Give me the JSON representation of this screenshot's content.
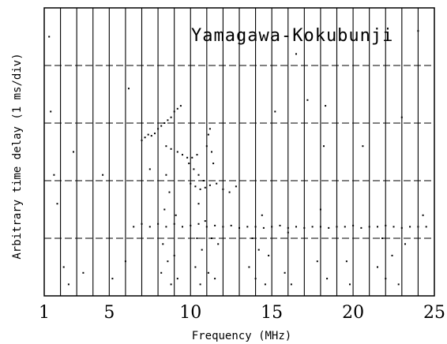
{
  "chart_data": {
    "type": "scatter",
    "title": "Yamagawa-Kokubunji",
    "xlabel": "Frequency (MHz)",
    "ylabel": "Arbitrary time delay (1 ms/div)",
    "xlim": [
      1,
      25
    ],
    "ylim": [
      0,
      5
    ],
    "x_ticks": [
      1,
      5,
      10,
      15,
      20,
      25
    ],
    "x_tick_labels": [
      "1",
      "5",
      "10",
      "15",
      "20",
      "25"
    ],
    "vertical_grid_lines_per_MHz": 1,
    "horizontal_gridlines_ms": [
      1,
      2,
      3,
      4
    ],
    "grid": true,
    "series": [
      {
        "values": [
          [
            7.0,
            2.7
          ],
          [
            7.2,
            2.75
          ],
          [
            7.4,
            2.8
          ],
          [
            7.6,
            2.78
          ],
          [
            7.8,
            2.82
          ],
          [
            8.0,
            2.9
          ],
          [
            8.2,
            2.95
          ],
          [
            8.4,
            3.0
          ],
          [
            8.6,
            3.05
          ],
          [
            8.8,
            3.1
          ],
          [
            9.0,
            3.2
          ],
          [
            9.2,
            3.25
          ],
          [
            9.4,
            3.3
          ],
          [
            8.5,
            2.6
          ],
          [
            8.8,
            2.55
          ],
          [
            9.2,
            2.5
          ],
          [
            9.5,
            2.45
          ],
          [
            9.8,
            2.4
          ],
          [
            10.1,
            2.4
          ],
          [
            10.4,
            2.45
          ],
          [
            10.0,
            1.95
          ],
          [
            10.3,
            1.9
          ],
          [
            10.6,
            1.85
          ],
          [
            10.9,
            1.88
          ],
          [
            11.2,
            1.92
          ],
          [
            11.6,
            1.95
          ],
          [
            12.0,
            1.85
          ],
          [
            12.4,
            1.8
          ],
          [
            12.8,
            1.9
          ],
          [
            9.9,
            2.3
          ],
          [
            10.2,
            2.2
          ],
          [
            10.5,
            2.1
          ],
          [
            10.8,
            2.0
          ],
          [
            11.0,
            2.6
          ],
          [
            11.1,
            2.8
          ],
          [
            11.2,
            2.9
          ],
          [
            11.3,
            2.5
          ],
          [
            11.4,
            2.3
          ],
          [
            6.5,
            1.2
          ],
          [
            7.0,
            1.25
          ],
          [
            7.5,
            1.2
          ],
          [
            8.0,
            1.25
          ],
          [
            8.5,
            1.2
          ],
          [
            9.0,
            1.25
          ],
          [
            9.5,
            1.2
          ],
          [
            10.0,
            1.22
          ],
          [
            10.5,
            1.25
          ],
          [
            11.0,
            1.2
          ],
          [
            11.5,
            1.22
          ],
          [
            12.0,
            1.2
          ],
          [
            12.5,
            1.22
          ],
          [
            13.0,
            1.18
          ],
          [
            13.5,
            1.2
          ],
          [
            14.0,
            1.2
          ],
          [
            14.5,
            1.18
          ],
          [
            15.0,
            1.2
          ],
          [
            15.5,
            1.22
          ],
          [
            16.0,
            1.18
          ],
          [
            16.5,
            1.2
          ],
          [
            17.0,
            1.18
          ],
          [
            17.5,
            1.2
          ],
          [
            18.0,
            1.2
          ],
          [
            18.5,
            1.18
          ],
          [
            19.0,
            1.2
          ],
          [
            19.5,
            1.2
          ],
          [
            20.0,
            1.22
          ],
          [
            20.5,
            1.18
          ],
          [
            21.0,
            1.2
          ],
          [
            21.5,
            1.2
          ],
          [
            22.0,
            1.22
          ],
          [
            22.5,
            1.2
          ],
          [
            23.0,
            1.18
          ],
          [
            23.5,
            1.2
          ],
          [
            24.0,
            1.2
          ],
          [
            24.5,
            1.2
          ],
          [
            8.2,
            0.4
          ],
          [
            8.3,
            0.9
          ],
          [
            8.4,
            1.5
          ],
          [
            8.5,
            2.1
          ],
          [
            8.6,
            0.6
          ],
          [
            8.7,
            1.8
          ],
          [
            8.8,
            0.2
          ],
          [
            9.0,
            0.7
          ],
          [
            9.1,
            1.4
          ],
          [
            9.2,
            0.3
          ],
          [
            10.3,
            0.5
          ],
          [
            10.4,
            1.0
          ],
          [
            10.5,
            1.6
          ],
          [
            10.6,
            0.2
          ],
          [
            10.7,
            0.8
          ],
          [
            10.9,
            1.3
          ],
          [
            11.1,
            0.4
          ],
          [
            11.3,
            1.0
          ],
          [
            11.5,
            0.3
          ],
          [
            11.7,
            0.9
          ],
          [
            13.6,
            0.5
          ],
          [
            13.8,
            1.0
          ],
          [
            14.0,
            0.3
          ],
          [
            14.2,
            0.8
          ],
          [
            14.4,
            1.4
          ],
          [
            14.6,
            0.2
          ],
          [
            14.8,
            0.7
          ],
          [
            15.8,
            0.4
          ],
          [
            16.0,
            1.1
          ],
          [
            16.2,
            0.2
          ],
          [
            17.8,
            0.6
          ],
          [
            18.0,
            1.5
          ],
          [
            18.2,
            2.6
          ],
          [
            18.3,
            3.3
          ],
          [
            18.4,
            0.3
          ],
          [
            19.6,
            0.6
          ],
          [
            19.8,
            0.2
          ],
          [
            21.5,
            0.5
          ],
          [
            21.8,
            1.0
          ],
          [
            22.0,
            0.3
          ],
          [
            22.4,
            0.7
          ],
          [
            22.8,
            0.2
          ],
          [
            23.2,
            0.9
          ],
          [
            1.3,
            4.5
          ],
          [
            1.4,
            3.2
          ],
          [
            1.6,
            2.1
          ],
          [
            1.8,
            1.6
          ],
          [
            2.2,
            0.5
          ],
          [
            2.5,
            0.2
          ],
          [
            2.8,
            2.5
          ],
          [
            3.4,
            0.4
          ],
          [
            4.6,
            2.1
          ],
          [
            5.2,
            0.3
          ],
          [
            6.0,
            0.6
          ],
          [
            6.2,
            3.6
          ],
          [
            7.5,
            2.2
          ],
          [
            15.2,
            3.2
          ],
          [
            16.5,
            4.2
          ],
          [
            17.2,
            3.4
          ],
          [
            20.6,
            2.6
          ],
          [
            23.0,
            3.1
          ],
          [
            24.0,
            4.6
          ],
          [
            24.3,
            1.4
          ]
        ]
      }
    ]
  }
}
